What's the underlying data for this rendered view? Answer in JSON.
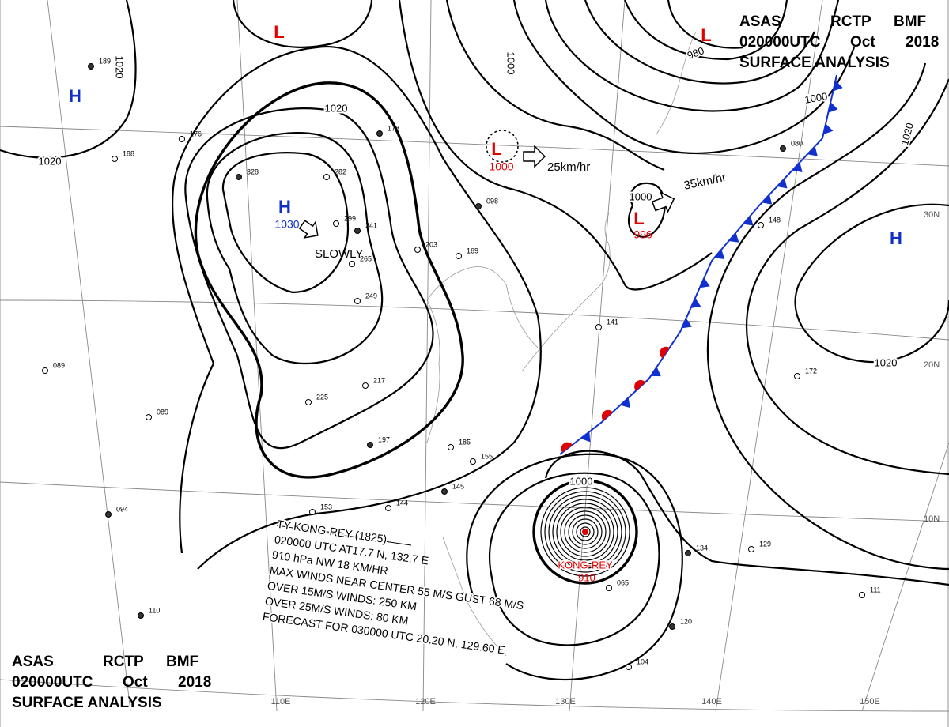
{
  "header": {
    "codes": [
      "ASAS",
      "RCTP",
      "BMF"
    ],
    "time": [
      "020000UTC",
      "Oct",
      "2018"
    ],
    "title": "SURFACE ANALYSIS"
  },
  "centers": [
    {
      "type": "H",
      "pressure": "1030"
    },
    {
      "type": "L",
      "pressure": "1000"
    },
    {
      "type": "L",
      "pressure": "996"
    },
    {
      "type": "L"
    },
    {
      "type": "L"
    },
    {
      "type": "H"
    },
    {
      "type": "H"
    }
  ],
  "motions": [
    "SLOWLY",
    "25km/hr",
    "35km/hr"
  ],
  "isobar_labels": [
    "1020",
    "1020",
    "1020",
    "1020",
    "1020",
    "1000",
    "1000",
    "1000",
    "1000",
    "980"
  ],
  "typhoon": {
    "name": "KONG-REY",
    "pressure": "910",
    "bulletin": [
      "TY  KONG-REY  (1825)",
      "020000 UTC  AT17.7 N, 132.7 E",
      "910 hPa  NW  18 KM/HR",
      "MAX WINDS NEAR CENTER 55 M/S GUST 68 M/S",
      "OVER 15M/S WINDS: 250 KM",
      "OVER 25M/S WINDS: 80 KM",
      "FORECAST FOR 030000 UTC 20.20 N, 129.60 E"
    ]
  },
  "latitudes": [
    "30N",
    "20N",
    "10N"
  ],
  "longitudes": [
    "110E",
    "120E",
    "130E",
    "140E",
    "150E"
  ],
  "stations": [
    "189",
    "176",
    "188",
    "328",
    "282",
    "299",
    "241",
    "265",
    "249",
    "178",
    "203",
    "169",
    "098",
    "225",
    "217",
    "197",
    "185",
    "155",
    "145",
    "153",
    "144",
    "094",
    "089",
    "089",
    "110",
    "172",
    "148",
    "134",
    "129",
    "111",
    "120",
    "104",
    "141",
    "080",
    "065"
  ]
}
